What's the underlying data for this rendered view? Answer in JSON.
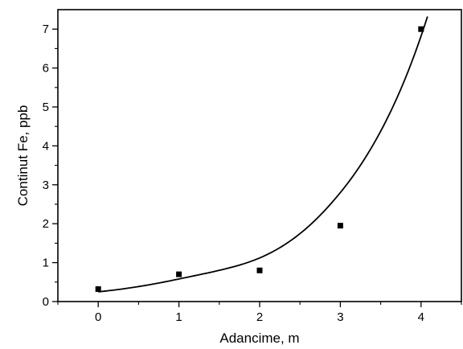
{
  "chart_data": {
    "type": "scatter",
    "title": "",
    "xlabel": "Adancime, m",
    "ylabel": "Continut Fe, ppb",
    "xlim": [
      -0.5,
      4.5
    ],
    "ylim": [
      0,
      7.5
    ],
    "xticks": [
      0,
      1,
      2,
      3,
      4
    ],
    "yticks": [
      0,
      1,
      2,
      3,
      4,
      5,
      6,
      7
    ],
    "x_tick_labels": [
      "0",
      "1",
      "2",
      "3",
      "4"
    ],
    "y_tick_labels": [
      "0",
      "1",
      "2",
      "3",
      "4",
      "5",
      "6",
      "7"
    ],
    "grid": false,
    "legend": "none",
    "series": [
      {
        "marker": "square",
        "color": "#000000",
        "points": [
          {
            "x": 0,
            "y": 0.32
          },
          {
            "x": 1,
            "y": 0.7
          },
          {
            "x": 2,
            "y": 0.8
          },
          {
            "x": 3,
            "y": 1.95
          },
          {
            "x": 4,
            "y": 7.0
          }
        ]
      },
      {
        "style": "line",
        "color": "#000000",
        "fit": "exponential growth (y0 + A*exp(x/t))",
        "x_range": [
          0,
          4.08
        ],
        "points": [
          {
            "x": 0,
            "y": 0.25
          },
          {
            "x": 1,
            "y": 0.58
          },
          {
            "x": 2,
            "y": 1.12
          },
          {
            "x": 3,
            "y": 2.8
          },
          {
            "x": 4,
            "y": 6.82
          }
        ]
      }
    ]
  }
}
